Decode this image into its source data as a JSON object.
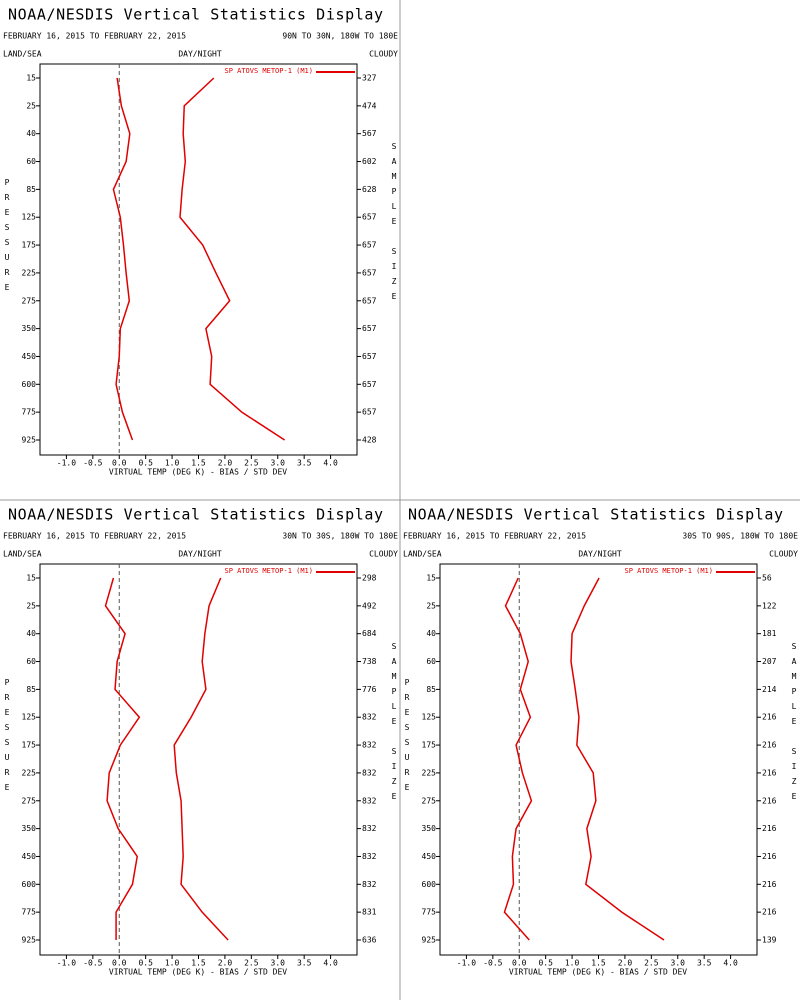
{
  "chart_data": [
    {
      "type": "line",
      "title": "NOAA/NESDIS Vertical Statistics Display",
      "subtitle": "FEBRUARY 16, 2015 TO FEBRUARY 22, 2015",
      "region": "90N TO 30N, 180W TO 180E",
      "land_sea": "LAND/SEA",
      "day_night": "DAY/NIGHT",
      "cloudy": "CLOUDY",
      "ylabel": "PRESSURE",
      "y2label": "SAMPLE SIZE",
      "xlabel": "VIRTUAL TEMP (DEG K) - BIAS / STD DEV",
      "categories": [
        "15",
        "25",
        "40",
        "60",
        "85",
        "125",
        "175",
        "225",
        "275",
        "350",
        "450",
        "600",
        "775",
        "925"
      ],
      "sample_size": [
        "327",
        "474",
        "567",
        "602",
        "628",
        "657",
        "657",
        "657",
        "657",
        "657",
        "657",
        "657",
        "657",
        "428"
      ],
      "series": [
        {
          "name": "SP ATOVS METOP-1 (M1)",
          "color": "#e00000",
          "values": [
            -0.04,
            0.04,
            0.2,
            0.13,
            -0.11,
            0.02,
            0.08,
            0.13,
            0.19,
            0.02,
            0,
            -0.06,
            0.06,
            0.25
          ]
        },
        {
          "color": "#e00000",
          "values": [
            1.79,
            1.23,
            1.21,
            1.25,
            1.19,
            1.15,
            1.58,
            1.83,
            2.09,
            1.64,
            1.75,
            1.72,
            2.32,
            3.13
          ]
        }
      ],
      "xlim": [
        -1.5,
        4.5
      ],
      "xticks": [
        {
          "value": -1,
          "label": "-1.0"
        },
        -0.5,
        {
          "value": 0,
          "label": "0.0"
        },
        0.5,
        {
          "value": 1,
          "label": "1.0"
        },
        1.5,
        {
          "value": 2,
          "label": "2.0"
        },
        2.5,
        {
          "value": 3,
          "label": "3.0"
        },
        3.5,
        {
          "value": 4,
          "label": "4.0"
        }
      ]
    },
    {
      "type": "line",
      "title": "NOAA/NESDIS Vertical Statistics Display",
      "subtitle": "FEBRUARY 16, 2015 TO FEBRUARY 22, 2015",
      "region": "30N TO 30S, 180W TO 180E",
      "land_sea": "LAND/SEA",
      "day_night": "DAY/NIGHT",
      "cloudy": "CLOUDY",
      "ylabel": "PRESSURE",
      "y2label": "SAMPLE SIZE",
      "xlabel": "VIRTUAL TEMP (DEG K) - BIAS / STD DEV",
      "categories": [
        "15",
        "25",
        "40",
        "60",
        "85",
        "125",
        "175",
        "225",
        "275",
        "350",
        "450",
        "600",
        "775",
        "925"
      ],
      "sample_size": [
        "298",
        "492",
        "684",
        "738",
        "776",
        "832",
        "832",
        "832",
        "832",
        "832",
        "832",
        "832",
        "831",
        "636"
      ],
      "series": [
        {
          "name": "SP ATOVS METOP-1 (M1)",
          "color": "#e00000",
          "values": [
            -0.11,
            -0.26,
            0.11,
            -0.04,
            -0.08,
            0.38,
            0.02,
            -0.19,
            -0.23,
            -0.02,
            0.34,
            0.25,
            -0.06,
            -0.06
          ]
        },
        {
          "color": "#e00000",
          "values": [
            1.92,
            1.7,
            1.62,
            1.57,
            1.64,
            1.36,
            1.04,
            1.08,
            1.17,
            1.19,
            1.21,
            1.17,
            1.57,
            2.06
          ]
        }
      ],
      "xlim": [
        -1.5,
        4.5
      ],
      "xticks": [
        {
          "value": -1,
          "label": "-1.0"
        },
        -0.5,
        {
          "value": 0,
          "label": "0.0"
        },
        0.5,
        {
          "value": 1,
          "label": "1.0"
        },
        1.5,
        {
          "value": 2,
          "label": "2.0"
        },
        2.5,
        {
          "value": 3,
          "label": "3.0"
        },
        3.5,
        {
          "value": 4,
          "label": "4.0"
        }
      ]
    },
    {
      "type": "line",
      "title": "NOAA/NESDIS Vertical Statistics Display",
      "subtitle": "FEBRUARY 16, 2015 TO FEBRUARY 22, 2015",
      "region": "30S TO 90S, 180W TO 180E",
      "land_sea": "LAND/SEA",
      "day_night": "DAY/NIGHT",
      "cloudy": "CLOUDY",
      "ylabel": "PRESSURE",
      "y2label": "SAMPLE SIZE",
      "xlabel": "VIRTUAL TEMP (DEG K) - BIAS / STD DEV",
      "categories": [
        "15",
        "25",
        "40",
        "60",
        "85",
        "125",
        "175",
        "225",
        "275",
        "350",
        "450",
        "600",
        "775",
        "925"
      ],
      "sample_size": [
        "56",
        "122",
        "181",
        "207",
        "214",
        "216",
        "216",
        "216",
        "216",
        "216",
        "216",
        "216",
        "216",
        "139"
      ],
      "series": [
        {
          "name": "SP ATOVS METOP-1 (M1)",
          "color": "#e00000",
          "values": [
            -0.02,
            -0.26,
            0.02,
            0.17,
            0.02,
            0.21,
            -0.06,
            0.06,
            0.23,
            -0.06,
            -0.13,
            -0.11,
            -0.28,
            0.19
          ]
        },
        {
          "color": "#e00000",
          "values": [
            1.51,
            1.23,
            1.0,
            0.98,
            1.06,
            1.13,
            1.09,
            1.4,
            1.45,
            1.28,
            1.36,
            1.26,
            1.94,
            2.74
          ]
        }
      ],
      "xlim": [
        -1.5,
        4.5
      ],
      "xticks": [
        {
          "value": -1,
          "label": "-1.0"
        },
        -0.5,
        {
          "value": 0,
          "label": "0.0"
        },
        0.5,
        {
          "value": 1,
          "label": "1.0"
        },
        1.5,
        {
          "value": 2,
          "label": "2.0"
        },
        2.5,
        {
          "value": 3,
          "label": "3.0"
        },
        3.5,
        {
          "value": 4,
          "label": "4.0"
        }
      ]
    }
  ]
}
